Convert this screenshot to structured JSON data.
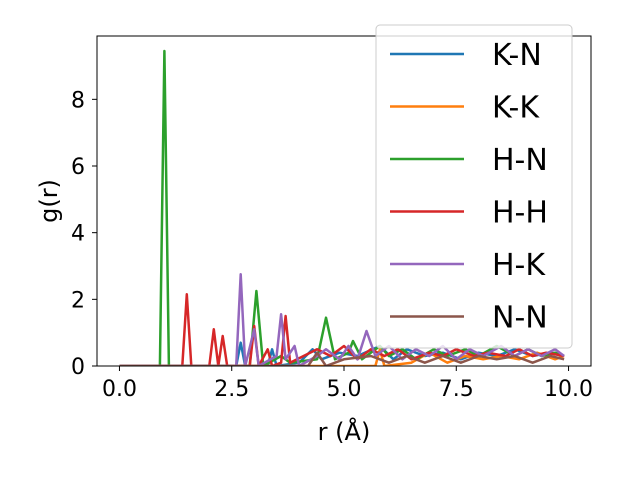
{
  "chart_data": {
    "type": "line",
    "title": "",
    "xlabel": "r (Å)",
    "ylabel": "g(r)",
    "xlim": [
      -0.5,
      10.5
    ],
    "ylim": [
      0,
      9.9
    ],
    "xticks": [
      0.0,
      2.5,
      5.0,
      7.5,
      10.0
    ],
    "xtick_labels": [
      "0.0",
      "2.5",
      "5.0",
      "7.5",
      "10.0"
    ],
    "yticks": [
      0,
      2,
      4,
      6,
      8
    ],
    "ytick_labels": [
      "0",
      "2",
      "4",
      "6",
      "8"
    ],
    "grid": false,
    "legend_position": "top-right",
    "series": [
      {
        "name": "K-N",
        "color": "#1f77b4",
        "points": [
          [
            0.0,
            0
          ],
          [
            2.6,
            0
          ],
          [
            2.7,
            0.7
          ],
          [
            2.8,
            0
          ],
          [
            3.3,
            0
          ],
          [
            3.4,
            0.5
          ],
          [
            3.5,
            0
          ],
          [
            4.0,
            0.1
          ],
          [
            4.3,
            0.5
          ],
          [
            4.5,
            0.2
          ],
          [
            4.9,
            0.4
          ],
          [
            5.3,
            0.3
          ],
          [
            5.8,
            0.6
          ],
          [
            6.1,
            0.2
          ],
          [
            6.4,
            0.5
          ],
          [
            6.8,
            0.3
          ],
          [
            7.2,
            0.4
          ],
          [
            7.6,
            0.2
          ],
          [
            8.0,
            0.4
          ],
          [
            8.4,
            0.3
          ],
          [
            8.8,
            0.5
          ],
          [
            9.2,
            0.3
          ],
          [
            9.6,
            0.4
          ],
          [
            9.9,
            0.3
          ]
        ]
      },
      {
        "name": "K-K",
        "color": "#ff7f0e",
        "points": [
          [
            0.0,
            0
          ],
          [
            5.7,
            0
          ],
          [
            5.8,
            0.5
          ],
          [
            5.9,
            0
          ],
          [
            6.5,
            0.1
          ],
          [
            6.9,
            0.4
          ],
          [
            7.3,
            0.1
          ],
          [
            7.7,
            0.3
          ],
          [
            8.1,
            0.2
          ],
          [
            8.5,
            0.3
          ],
          [
            8.9,
            0.2
          ],
          [
            9.3,
            0.4
          ],
          [
            9.7,
            0.2
          ],
          [
            9.9,
            0.3
          ]
        ]
      },
      {
        "name": "H-N",
        "color": "#2ca02c",
        "points": [
          [
            0.0,
            0
          ],
          [
            0.9,
            0
          ],
          [
            1.0,
            9.45
          ],
          [
            1.1,
            0
          ],
          [
            2.9,
            0
          ],
          [
            3.05,
            2.25
          ],
          [
            3.2,
            0
          ],
          [
            3.6,
            0.3
          ],
          [
            3.8,
            0.1
          ],
          [
            4.4,
            0.2
          ],
          [
            4.6,
            1.45
          ],
          [
            4.8,
            0.2
          ],
          [
            5.1,
            0.4
          ],
          [
            5.2,
            0.75
          ],
          [
            5.4,
            0.2
          ],
          [
            5.8,
            0.6
          ],
          [
            6.0,
            0.3
          ],
          [
            6.3,
            0.5
          ],
          [
            6.6,
            0.2
          ],
          [
            7.0,
            0.5
          ],
          [
            7.3,
            0.3
          ],
          [
            7.7,
            0.5
          ],
          [
            8.0,
            0.3
          ],
          [
            8.4,
            0.6
          ],
          [
            8.8,
            0.3
          ],
          [
            9.1,
            0.5
          ],
          [
            9.4,
            0.3
          ],
          [
            9.7,
            0.4
          ],
          [
            9.9,
            0.3
          ]
        ]
      },
      {
        "name": "H-H",
        "color": "#d62728",
        "points": [
          [
            0.0,
            0
          ],
          [
            1.4,
            0
          ],
          [
            1.5,
            2.15
          ],
          [
            1.6,
            0
          ],
          [
            2.0,
            0
          ],
          [
            2.1,
            1.1
          ],
          [
            2.2,
            0
          ],
          [
            2.3,
            0.9
          ],
          [
            2.4,
            0
          ],
          [
            2.9,
            0
          ],
          [
            3.0,
            1.2
          ],
          [
            3.1,
            0
          ],
          [
            3.3,
            0.5
          ],
          [
            3.4,
            0
          ],
          [
            3.6,
            0.1
          ],
          [
            3.7,
            1.5
          ],
          [
            3.8,
            0.1
          ],
          [
            4.1,
            0.3
          ],
          [
            4.4,
            0.5
          ],
          [
            4.7,
            0.3
          ],
          [
            5.0,
            0.6
          ],
          [
            5.3,
            0.2
          ],
          [
            5.6,
            0.5
          ],
          [
            5.9,
            0.3
          ],
          [
            6.2,
            0.5
          ],
          [
            6.5,
            0.2
          ],
          [
            6.9,
            0.4
          ],
          [
            7.2,
            0.3
          ],
          [
            7.5,
            0.5
          ],
          [
            7.9,
            0.3
          ],
          [
            8.2,
            0.4
          ],
          [
            8.6,
            0.3
          ],
          [
            8.9,
            0.5
          ],
          [
            9.2,
            0.3
          ],
          [
            9.5,
            0.4
          ],
          [
            9.9,
            0.3
          ]
        ]
      },
      {
        "name": "H-K",
        "color": "#9467bd",
        "points": [
          [
            0.0,
            0
          ],
          [
            2.6,
            0
          ],
          [
            2.7,
            2.75
          ],
          [
            2.8,
            0
          ],
          [
            3.0,
            1.1
          ],
          [
            3.1,
            0
          ],
          [
            3.5,
            0.3
          ],
          [
            3.6,
            1.55
          ],
          [
            3.7,
            0.2
          ],
          [
            3.9,
            0.6
          ],
          [
            4.0,
            0
          ],
          [
            4.4,
            0.3
          ],
          [
            4.6,
            0.5
          ],
          [
            4.9,
            0.2
          ],
          [
            5.1,
            0.6
          ],
          [
            5.3,
            0.2
          ],
          [
            5.5,
            1.05
          ],
          [
            5.7,
            0.3
          ],
          [
            6.0,
            0.6
          ],
          [
            6.3,
            0.2
          ],
          [
            6.6,
            0.5
          ],
          [
            6.9,
            0.3
          ],
          [
            7.2,
            0.6
          ],
          [
            7.5,
            0.2
          ],
          [
            7.8,
            0.5
          ],
          [
            8.1,
            0.3
          ],
          [
            8.5,
            0.6
          ],
          [
            8.8,
            0.3
          ],
          [
            9.1,
            0.5
          ],
          [
            9.4,
            0.3
          ],
          [
            9.7,
            0.5
          ],
          [
            9.9,
            0.3
          ]
        ]
      },
      {
        "name": "N-N",
        "color": "#8c564b",
        "points": [
          [
            0.0,
            0
          ],
          [
            4.2,
            0
          ],
          [
            4.4,
            0.4
          ],
          [
            4.6,
            0
          ],
          [
            5.0,
            0.2
          ],
          [
            5.6,
            0.3
          ],
          [
            6.0,
            0.1
          ],
          [
            6.4,
            0.3
          ],
          [
            6.8,
            0.1
          ],
          [
            7.2,
            0.3
          ],
          [
            7.6,
            0.1
          ],
          [
            8.0,
            0.3
          ],
          [
            8.4,
            0.2
          ],
          [
            8.8,
            0.3
          ],
          [
            9.2,
            0.1
          ],
          [
            9.6,
            0.3
          ],
          [
            9.9,
            0.2
          ]
        ]
      }
    ]
  }
}
